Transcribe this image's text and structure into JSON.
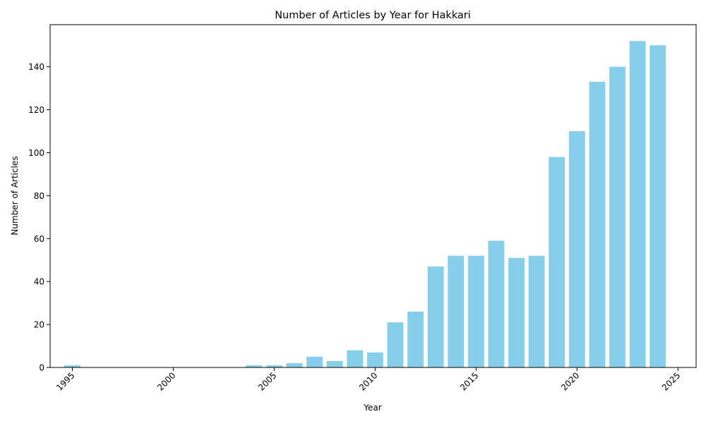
{
  "chart_data": {
    "type": "bar",
    "title": "Number of Articles by Year for Hakkari",
    "xlabel": "Year",
    "ylabel": "Number of Articles",
    "x": [
      1995,
      2004,
      2005,
      2006,
      2007,
      2008,
      2009,
      2010,
      2011,
      2012,
      2013,
      2014,
      2015,
      2016,
      2017,
      2018,
      2019,
      2020,
      2021,
      2022,
      2023,
      2024
    ],
    "values": [
      1,
      1,
      1,
      2,
      5,
      3,
      8,
      7,
      21,
      26,
      47,
      52,
      52,
      59,
      51,
      52,
      98,
      110,
      133,
      140,
      152,
      150
    ],
    "xlim": [
      1993.9,
      2025.9
    ],
    "ylim": [
      0,
      159.6
    ],
    "x_ticks": [
      1995,
      2000,
      2005,
      2010,
      2015,
      2020,
      2025
    ],
    "y_ticks": [
      0,
      20,
      40,
      60,
      80,
      100,
      120,
      140
    ],
    "x_tick_rotation_deg": 45,
    "bar_color": "#87CEEB",
    "grid": false,
    "legend": "none"
  }
}
